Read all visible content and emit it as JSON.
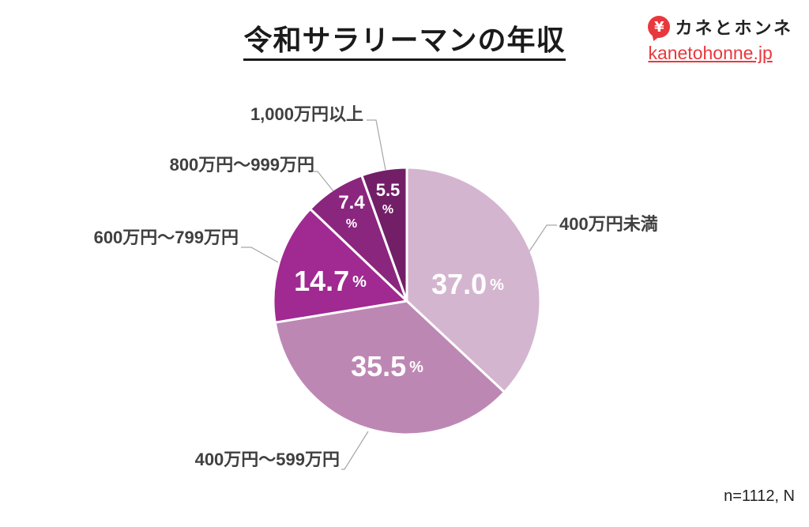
{
  "header": {
    "title": "令和サラリーマンの年収"
  },
  "brand": {
    "icon": "yen-speech-bubble-icon",
    "icon_glyph": "¥",
    "name": "カネとホンネ",
    "url": "kanetohonne.jp",
    "color": "#e8383d"
  },
  "footer": {
    "note": "n=1112, N"
  },
  "chart_data": {
    "type": "pie",
    "title": "令和サラリーマンの年収",
    "categories": [
      "400万円未満",
      "400万円～599万円",
      "600万円～799万円",
      "800万円～999万円",
      "1,000万円以上"
    ],
    "values": [
      37.0,
      35.5,
      14.7,
      7.4,
      5.5
    ],
    "unit": "%",
    "colors": [
      "#d4b5cf",
      "#bd87b4",
      "#a02a91",
      "#8a267e",
      "#721f67"
    ],
    "start_angle_deg": 0,
    "direction": "clockwise",
    "legend": "none (leader-line labels)",
    "sample_size": "n=1112"
  }
}
